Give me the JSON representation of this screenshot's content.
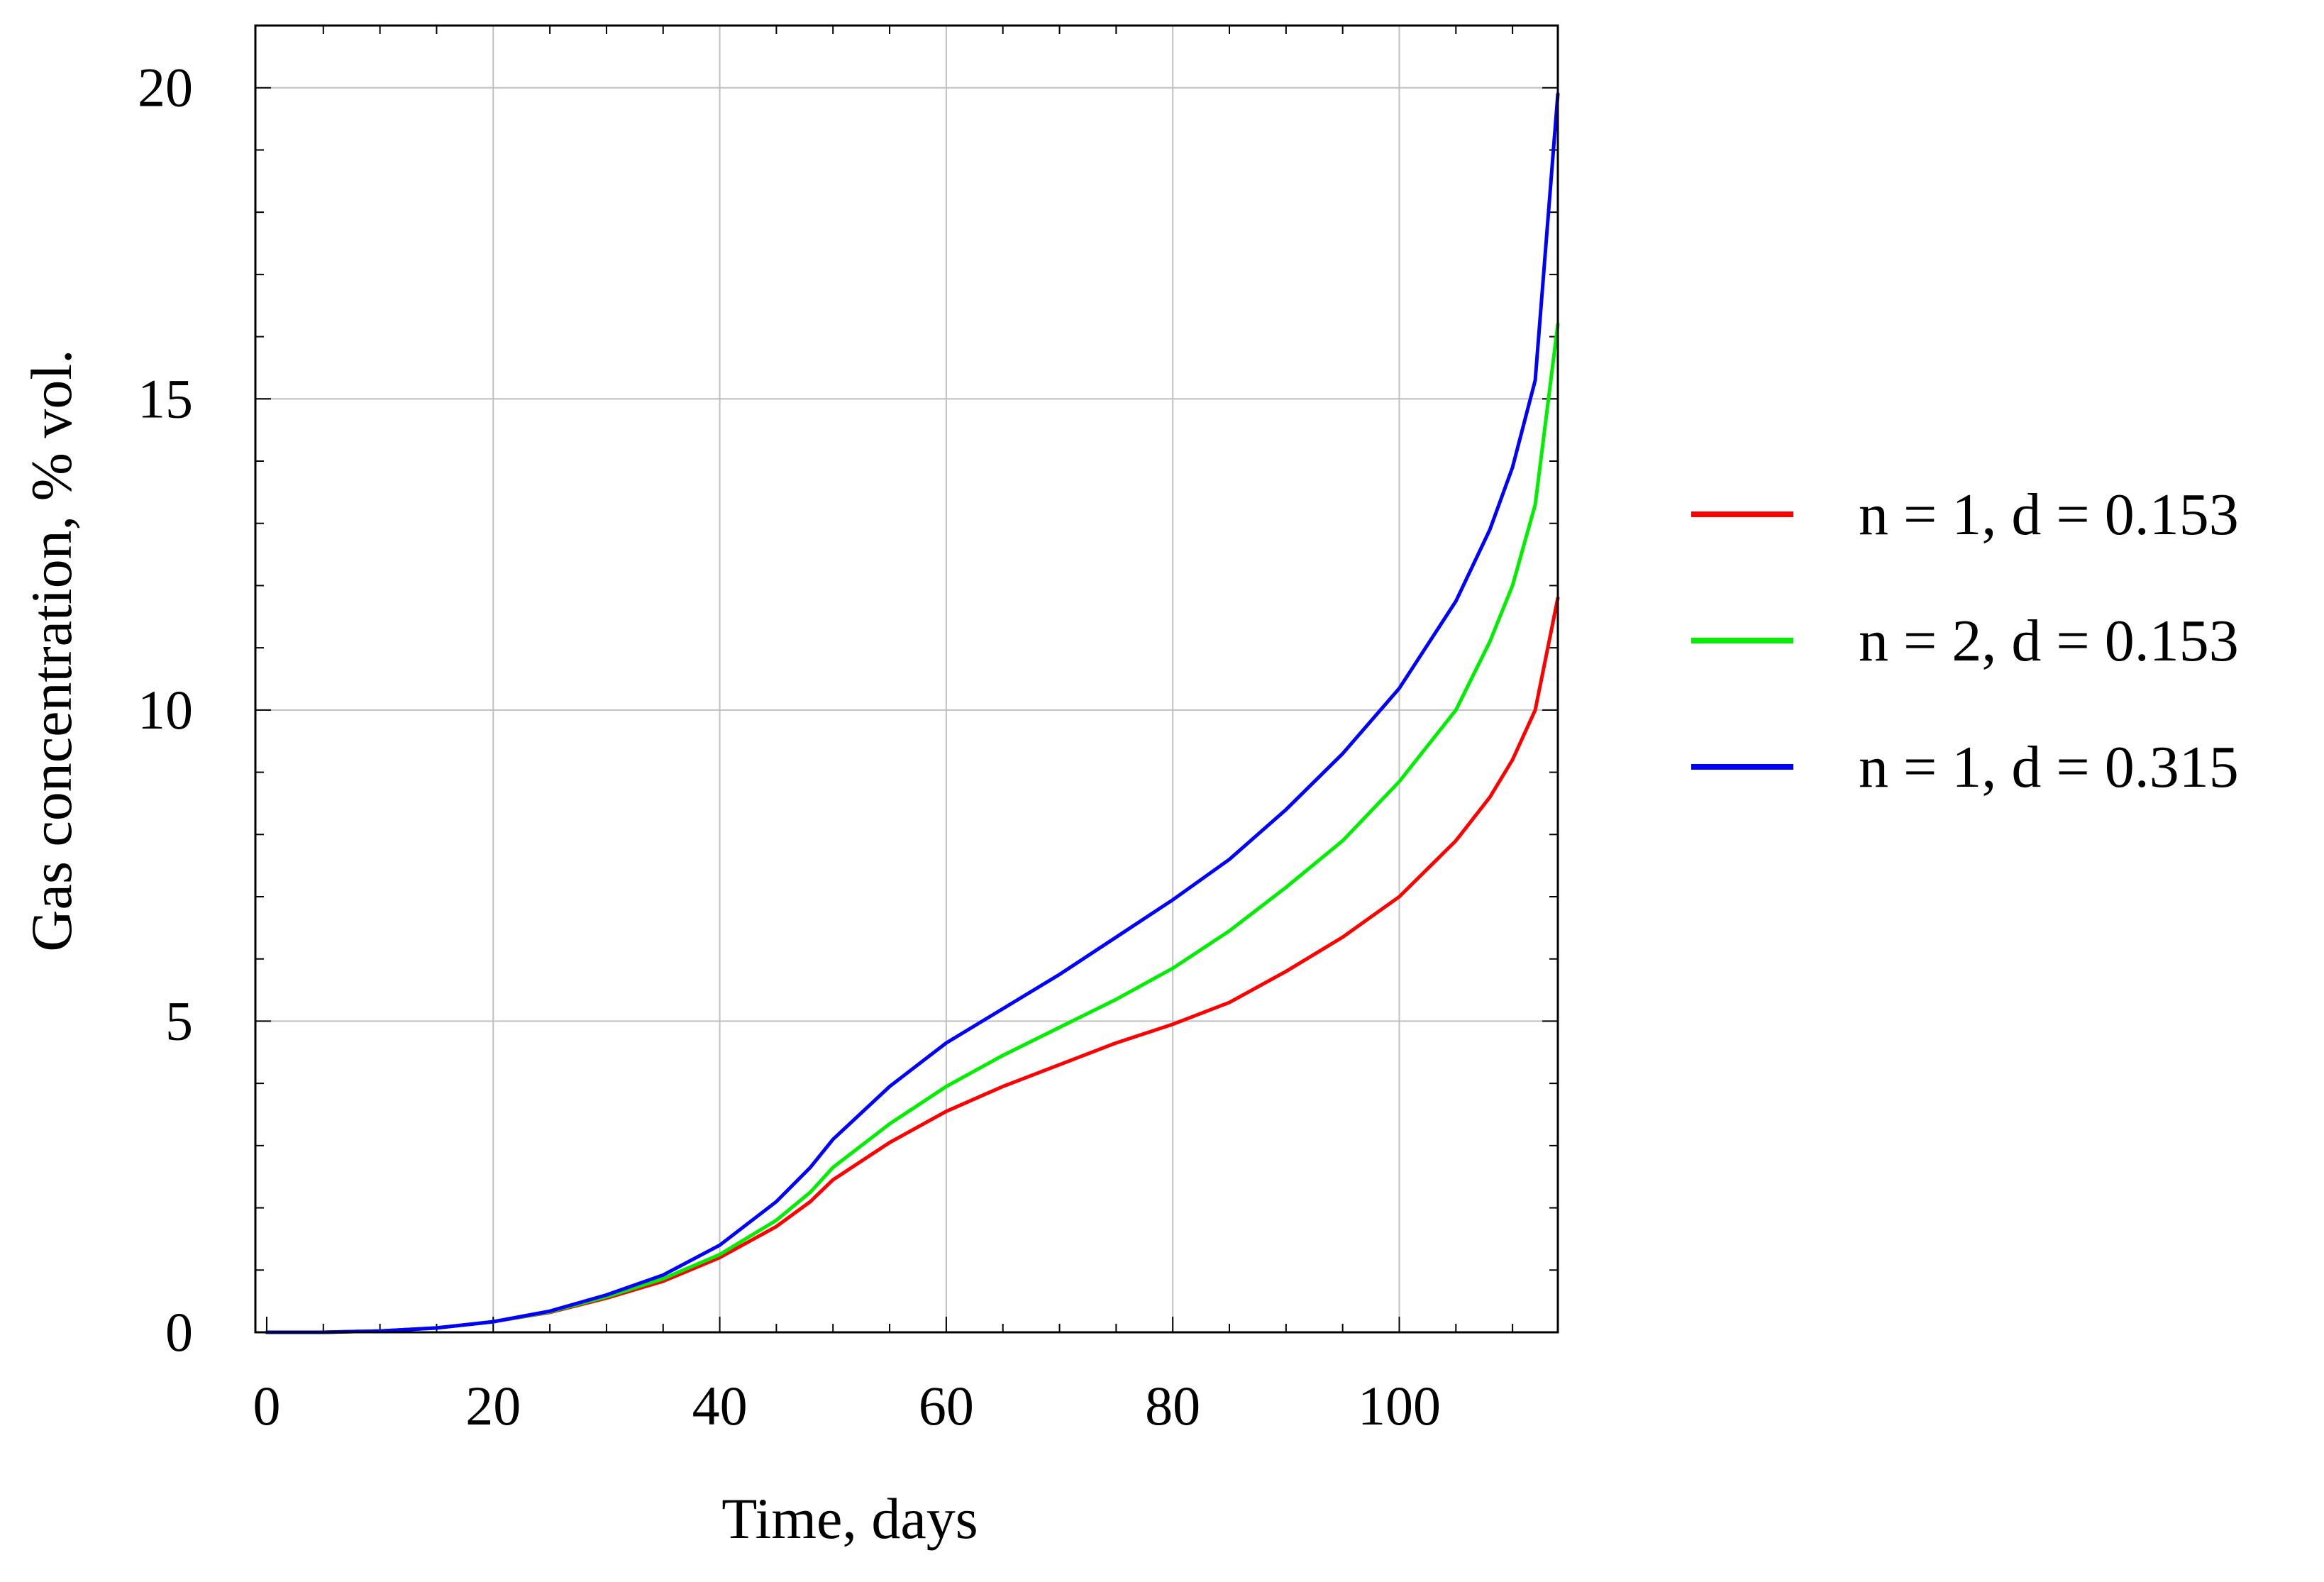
{
  "chart_data": {
    "type": "line",
    "title": "",
    "xlabel": "Time, days",
    "ylabel": "Gas concentration, % vol.",
    "xlim": [
      -1,
      114
    ],
    "ylim": [
      0,
      21
    ],
    "x_ticks": [
      0,
      20,
      40,
      60,
      80,
      100
    ],
    "x_tick_labels": [
      "0",
      "20",
      "40",
      "60",
      "80",
      "100"
    ],
    "y_ticks": [
      0,
      5,
      10,
      15,
      20
    ],
    "y_tick_labels": [
      "0",
      "5",
      "10",
      "15",
      "20"
    ],
    "grid": true,
    "legend_position": "right",
    "series": [
      {
        "name": "n = 1, d = 0.153",
        "color": "#ff0000",
        "x": [
          0,
          5,
          10,
          15,
          20,
          25,
          30,
          35,
          40,
          45,
          48,
          50,
          55,
          60,
          65,
          70,
          75,
          80,
          85,
          90,
          95,
          100,
          105,
          108,
          110,
          112,
          114
        ],
        "y": [
          0,
          0,
          0.02,
          0.07,
          0.17,
          0.32,
          0.55,
          0.82,
          1.2,
          1.7,
          2.1,
          2.45,
          3.05,
          3.55,
          3.95,
          4.3,
          4.65,
          4.95,
          5.3,
          5.8,
          6.35,
          7.0,
          7.9,
          8.6,
          9.2,
          10.0,
          11.8
        ]
      },
      {
        "name": "n = 2, d = 0.153",
        "color": "#00ee00",
        "x": [
          0,
          5,
          10,
          15,
          20,
          25,
          30,
          35,
          40,
          45,
          48,
          50,
          55,
          60,
          65,
          70,
          75,
          80,
          85,
          90,
          95,
          100,
          105,
          108,
          110,
          112,
          114
        ],
        "y": [
          0,
          0,
          0.02,
          0.07,
          0.17,
          0.33,
          0.57,
          0.86,
          1.25,
          1.8,
          2.25,
          2.65,
          3.35,
          3.95,
          4.45,
          4.9,
          5.35,
          5.85,
          6.45,
          7.15,
          7.9,
          8.85,
          10.0,
          11.1,
          12.0,
          13.3,
          16.2
        ]
      },
      {
        "name": "n = 1, d = 0.315",
        "color": "#0000ff",
        "x": [
          0,
          5,
          10,
          15,
          20,
          25,
          30,
          35,
          40,
          45,
          48,
          50,
          55,
          60,
          65,
          70,
          75,
          80,
          85,
          90,
          95,
          100,
          105,
          108,
          110,
          112,
          114
        ],
        "y": [
          0,
          0,
          0.02,
          0.07,
          0.17,
          0.34,
          0.6,
          0.92,
          1.4,
          2.1,
          2.65,
          3.1,
          3.95,
          4.65,
          5.2,
          5.75,
          6.35,
          6.95,
          7.6,
          8.4,
          9.3,
          10.35,
          11.75,
          12.9,
          13.9,
          15.3,
          19.9
        ]
      }
    ]
  }
}
